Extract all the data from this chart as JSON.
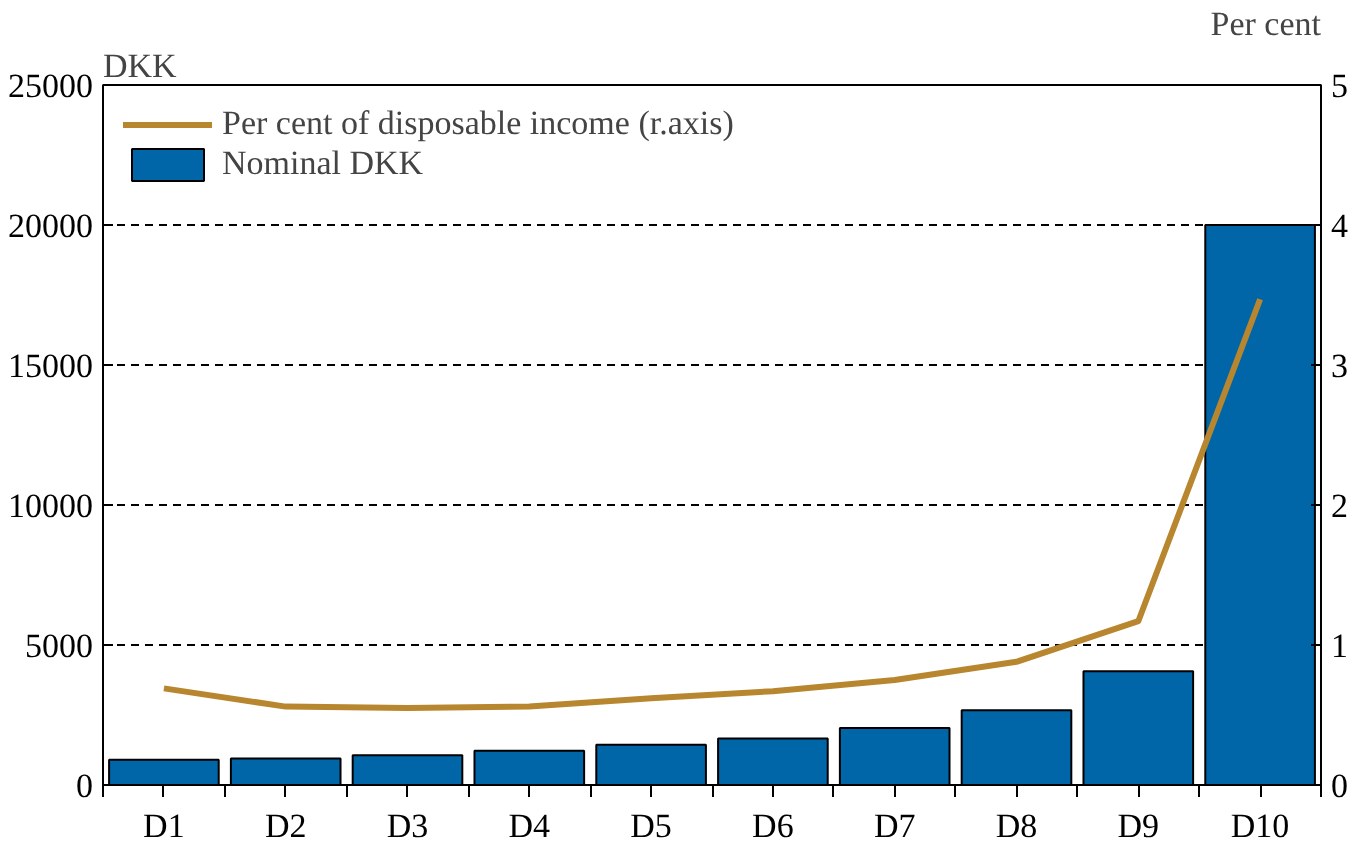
{
  "chart_data": {
    "type": "bar",
    "categories": [
      "D1",
      "D2",
      "D3",
      "D4",
      "D5",
      "D6",
      "D7",
      "D8",
      "D9",
      "D10"
    ],
    "series": [
      {
        "name": "Per cent of disposable income (r.axis)",
        "type": "line",
        "axis": "y2",
        "color": "#b8862e",
        "values": [
          0.69,
          0.56,
          0.55,
          0.56,
          0.62,
          0.67,
          0.75,
          0.88,
          1.17,
          3.47
        ]
      },
      {
        "name": "Nominal DKK",
        "type": "bar",
        "color": "#0066a8",
        "values": [
          900,
          950,
          1060,
          1220,
          1440,
          1660,
          2040,
          2670,
          4060,
          20000
        ]
      }
    ],
    "ylabel": "DKK",
    "y2label": "Per cent",
    "ylim": [
      0,
      25000
    ],
    "yticks": [
      0,
      5000,
      10000,
      15000,
      20000,
      25000
    ],
    "y2lim": [
      0,
      5
    ],
    "y2ticks": [
      0,
      1,
      2,
      3,
      4,
      5
    ],
    "grid": "y",
    "legend": "top left"
  }
}
